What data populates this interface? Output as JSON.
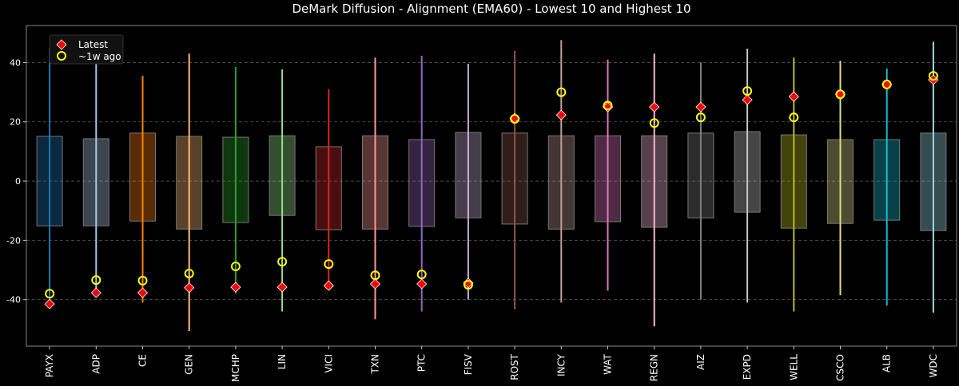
{
  "chart_data": {
    "type": "range-box",
    "title": "DeMark Diffusion - Alignment (EMA60) - Lowest 10 and Highest 10",
    "xlabel": "",
    "ylabel": "",
    "ylim": [
      -55.7,
      52.5
    ],
    "yticks": [
      -40,
      -20,
      0,
      20,
      40
    ],
    "grid": "horizontal dashed",
    "legend": {
      "position": "top-left",
      "entries": [
        "Latest",
        "~1w ago"
      ]
    },
    "marker_colors": {
      "latest": "#ff0000",
      "week_ago": "#ffff00"
    },
    "categories": [
      "PAYX",
      "ADP",
      "CE",
      "GEN",
      "MCHP",
      "LIN",
      "VICI",
      "TXN",
      "PTC",
      "FISV",
      "ROST",
      "INCY",
      "WAT",
      "REGN",
      "AIZ",
      "EXPD",
      "WELL",
      "CSCO",
      "ALB",
      "WDC"
    ],
    "colors": [
      "#1f77b4",
      "#aec7e8",
      "#ff7f0e",
      "#ffbb78",
      "#2ca02c",
      "#98df8a",
      "#d62728",
      "#ff9896",
      "#9467bd",
      "#c5b0d5",
      "#8c564b",
      "#c49c94",
      "#e377c2",
      "#f7b6d2",
      "#7f7f7f",
      "#c7c7c7",
      "#bcbd22",
      "#dbdb8d",
      "#17becf",
      "#9edae5"
    ],
    "range_min": [
      -42.5,
      -38,
      -41,
      -50.6,
      -38,
      -44,
      -35.8,
      -46.6,
      -44,
      -40,
      -43.3,
      -41,
      -37,
      -49,
      -40,
      -41,
      -44,
      -38.5,
      -42,
      -44.4
    ],
    "range_max": [
      45,
      42,
      35.5,
      43,
      38.5,
      37.7,
      31,
      41.7,
      42.3,
      39.6,
      44,
      47.6,
      41,
      43,
      40,
      44.7,
      41.7,
      40.6,
      38,
      47
    ],
    "box_low": [
      -15.1,
      -15.1,
      -13.5,
      -16.2,
      -14,
      -11.6,
      -16.4,
      -16.2,
      -15.3,
      -12.4,
      -14.5,
      -16.2,
      -13.7,
      -15.6,
      -12.4,
      -10.5,
      -15.9,
      -14.3,
      -13.2,
      -16.7
    ],
    "box_high": [
      15.1,
      14.3,
      16.2,
      15.1,
      14.8,
      15.3,
      11.6,
      15.3,
      14,
      16.4,
      16.2,
      15.3,
      15.3,
      15.3,
      16.2,
      16.7,
      15.6,
      14,
      14,
      16.2
    ],
    "series": [
      {
        "name": "Latest",
        "values": [
          -41.5,
          -37.7,
          -37.7,
          -36,
          -35.8,
          -35.8,
          -35.3,
          -34.7,
          -34.7,
          -34.4,
          21.2,
          22.3,
          25,
          25,
          25,
          27.4,
          28.5,
          29.3,
          32.6,
          34.2
        ]
      },
      {
        "name": "~1w ago",
        "values": [
          -38,
          -33.4,
          -33.6,
          -31.2,
          -28.8,
          -27.2,
          -28,
          -31.8,
          -31.5,
          -35,
          21,
          30,
          25.5,
          19.6,
          21.5,
          30.4,
          21.5,
          29.3,
          32.6,
          35.5
        ]
      }
    ]
  }
}
